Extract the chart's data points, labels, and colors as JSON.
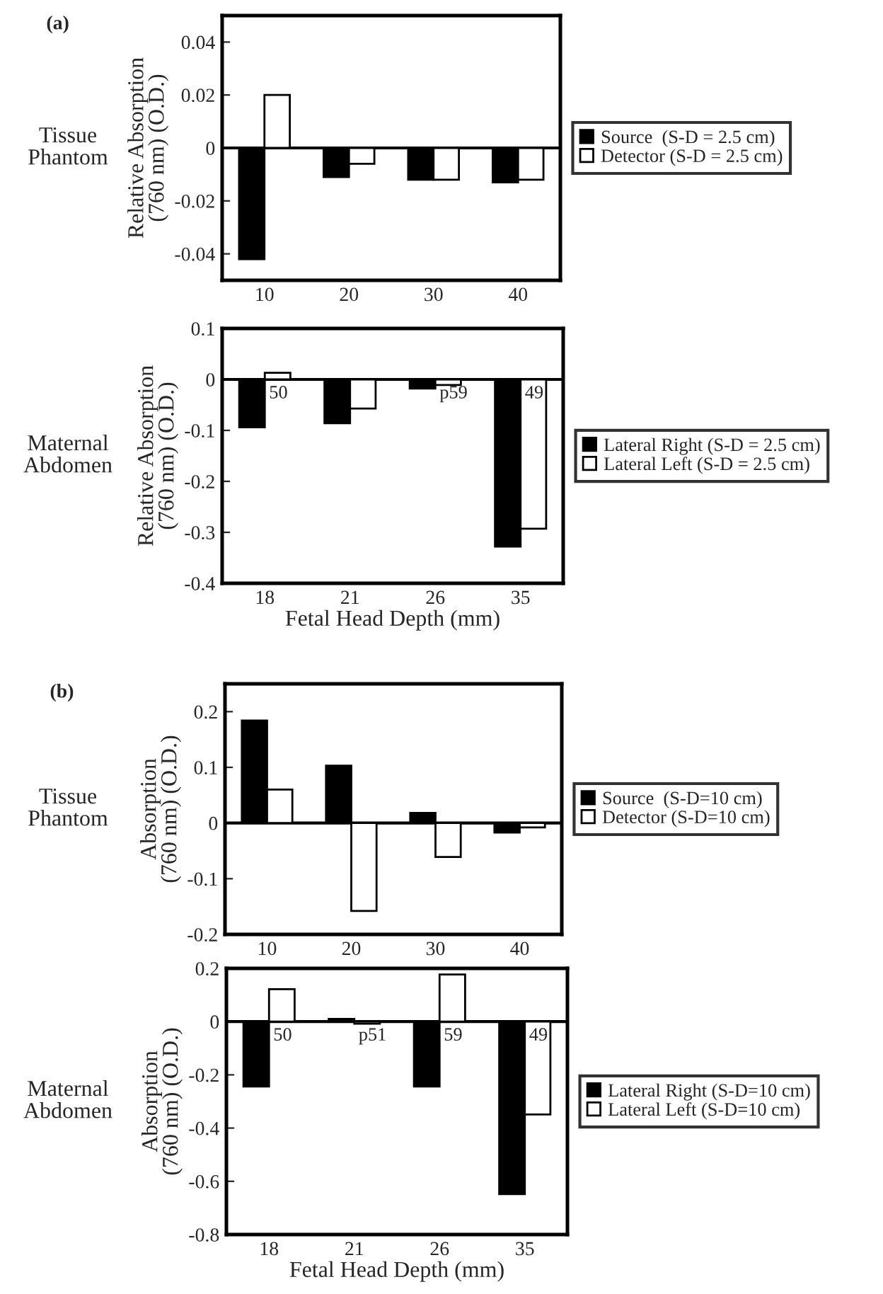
{
  "chart_data": [
    {
      "type": "bar",
      "title": "(a)",
      "subtitle": "Tissue\nPhantom",
      "ylabel": "Relative Absorption\n(760 nm) (O.D.)",
      "categories": [
        "10",
        "20",
        "30",
        "40"
      ],
      "series": [
        {
          "name": "Source  (S-D = 2.5 cm)",
          "color": "#000000",
          "values": [
            -0.042,
            -0.011,
            -0.012,
            -0.013
          ]
        },
        {
          "name": "Detector (S-D = 2.5 cm)",
          "color": "#ffffff",
          "values": [
            0.02,
            -0.006,
            -0.012,
            -0.012
          ]
        }
      ],
      "ylim": [
        -0.05,
        0.05
      ],
      "yticks": [
        -0.04,
        -0.02,
        0,
        0.02,
        0.04
      ],
      "ref_lines": [
        {
          "axis": "y",
          "value": 0
        }
      ],
      "legend": "right",
      "grid": false
    },
    {
      "type": "bar",
      "subtitle": "Maternal\nAbdomen",
      "xlabel": "Fetal Head Depth (mm)",
      "ylabel": "Relative Absorption\n(760 nm) (O.D.)",
      "categories": [
        "18",
        "21",
        "26",
        "35"
      ],
      "series": [
        {
          "name": "Lateral Right (S-D = 2.5 cm)",
          "color": "#000000",
          "values": [
            -0.094,
            -0.086,
            -0.018,
            -0.328
          ]
        },
        {
          "name": "Lateral Left (S-D = 2.5 cm)",
          "color": "#ffffff",
          "values": [
            0.013,
            -0.057,
            -0.011,
            -0.293
          ]
        }
      ],
      "annotations": [
        {
          "text": "50",
          "x": "18",
          "y": 0
        },
        {
          "text": "p59",
          "x": "26",
          "y": 0
        },
        {
          "text": "49",
          "x": "35",
          "y": 0
        }
      ],
      "ylim": [
        -0.4,
        0.1
      ],
      "yticks": [
        -0.4,
        -0.3,
        -0.2,
        -0.1,
        0,
        0.1
      ],
      "ref_lines": [
        {
          "axis": "y",
          "value": 0
        }
      ],
      "legend": "right",
      "grid": false
    },
    {
      "type": "bar",
      "title": "(b)",
      "subtitle": "Tissue\nPhantom",
      "ylabel": "Absorption\n(760 nm) (O.D.)",
      "categories": [
        "10",
        "20",
        "30",
        "40"
      ],
      "series": [
        {
          "name": "Source  (S-D=10 cm)",
          "color": "#000000",
          "values": [
            0.184,
            0.103,
            0.018,
            -0.017
          ]
        },
        {
          "name": "Detector (S-D=10 cm)",
          "color": "#ffffff",
          "values": [
            0.06,
            -0.158,
            -0.061,
            -0.008
          ]
        }
      ],
      "ylim": [
        -0.2,
        0.25
      ],
      "yticks": [
        -0.2,
        -0.1,
        0,
        0.1,
        0.2
      ],
      "ref_lines": [
        {
          "axis": "y",
          "value": 0
        }
      ],
      "legend": "right",
      "grid": false
    },
    {
      "type": "bar",
      "subtitle": "Maternal\nAbdomen",
      "xlabel": "Fetal Head Depth (mm)",
      "ylabel": "Absorption\n(760 nm) (O.D.)",
      "categories": [
        "18",
        "21",
        "26",
        "35"
      ],
      "series": [
        {
          "name": "Lateral Right (S-D=10 cm)",
          "color": "#000000",
          "values": [
            -0.244,
            0.01,
            -0.244,
            -0.648
          ]
        },
        {
          "name": "Lateral Left (S-D=10 cm)",
          "color": "#ffffff",
          "values": [
            0.122,
            -0.008,
            0.177,
            -0.349
          ]
        }
      ],
      "annotations": [
        {
          "text": "50",
          "x": "18",
          "y": 0
        },
        {
          "text": "p51",
          "x": "21",
          "y": 0
        },
        {
          "text": "59",
          "x": "26",
          "y": 0
        },
        {
          "text": "49",
          "x": "35",
          "y": 0
        }
      ],
      "ylim": [
        -0.8,
        0.2
      ],
      "yticks": [
        -0.8,
        -0.6,
        -0.4,
        -0.2,
        0,
        0.2
      ],
      "ref_lines": [
        {
          "axis": "y",
          "value": 0
        }
      ],
      "legend": "right",
      "grid": false
    }
  ]
}
